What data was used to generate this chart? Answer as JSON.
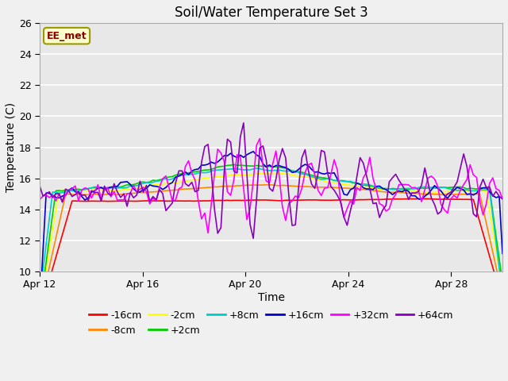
{
  "title": "Soil/Water Temperature Set 3",
  "xlabel": "Time",
  "ylabel": "Temperature (C)",
  "ylim": [
    10,
    26
  ],
  "yticks": [
    10,
    12,
    14,
    16,
    18,
    20,
    22,
    24,
    26
  ],
  "xtick_labels": [
    "Apr 12",
    "Apr 16",
    "Apr 20",
    "Apr 24",
    "Apr 28"
  ],
  "fig_bg_color": "#f0f0f0",
  "plot_bg_color": "#e8e8e8",
  "annotation_text": "EE_met",
  "annotation_bg": "#ffffcc",
  "annotation_border": "#999900",
  "annotation_text_color": "#8b0000",
  "series": [
    {
      "label": "-16cm",
      "color": "#ff0000",
      "lw": 1.2
    },
    {
      "label": "-8cm",
      "color": "#ff8800",
      "lw": 1.2
    },
    {
      "label": "-2cm",
      "color": "#ffff00",
      "lw": 1.2
    },
    {
      "label": "+2cm",
      "color": "#00cc00",
      "lw": 1.2
    },
    {
      "label": "+8cm",
      "color": "#00cccc",
      "lw": 1.2
    },
    {
      "label": "+16cm",
      "color": "#0000cc",
      "lw": 1.2
    },
    {
      "label": "+32cm",
      "color": "#ff00ff",
      "lw": 1.2
    },
    {
      "label": "+64cm",
      "color": "#8800bb",
      "lw": 1.2
    }
  ],
  "figsize": [
    6.4,
    4.8
  ],
  "dpi": 100
}
